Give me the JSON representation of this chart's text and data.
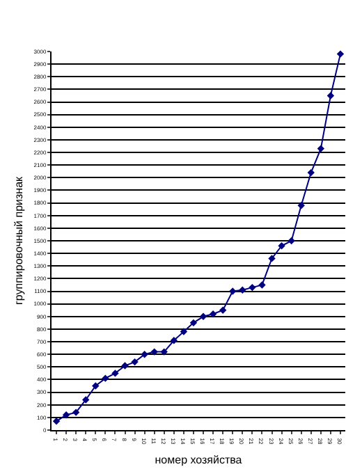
{
  "chart_data": {
    "type": "line",
    "xlabel": "номер хозяйства",
    "ylabel": "группировочный признак",
    "categories": [
      "1",
      "2",
      "3",
      "4",
      "5",
      "6",
      "7",
      "8",
      "9",
      "10",
      "11",
      "12",
      "13",
      "14",
      "15",
      "16",
      "17",
      "18",
      "19",
      "20",
      "21",
      "22",
      "23",
      "24",
      "25",
      "26",
      "27",
      "28",
      "29",
      "30"
    ],
    "series": [
      {
        "color": "#000080",
        "values": [
          70,
          120,
          140,
          240,
          350,
          410,
          450,
          510,
          540,
          600,
          620,
          620,
          710,
          780,
          850,
          900,
          920,
          950,
          1100,
          1110,
          1130,
          1150,
          1360,
          1460,
          1500,
          1780,
          2040,
          2230,
          2650,
          2980
        ]
      }
    ],
    "ylim": [
      0,
      3000
    ],
    "yticks": [
      0,
      100,
      200,
      300,
      400,
      500,
      600,
      700,
      800,
      900,
      1000,
      1100,
      1200,
      1300,
      1400,
      1500,
      1600,
      1700,
      1800,
      1900,
      2000,
      2100,
      2200,
      2300,
      2400,
      2500,
      2600,
      2700,
      2800,
      2900,
      3000
    ],
    "grid": "y",
    "legend": false,
    "marker": "diamond",
    "line_style": "solid"
  }
}
